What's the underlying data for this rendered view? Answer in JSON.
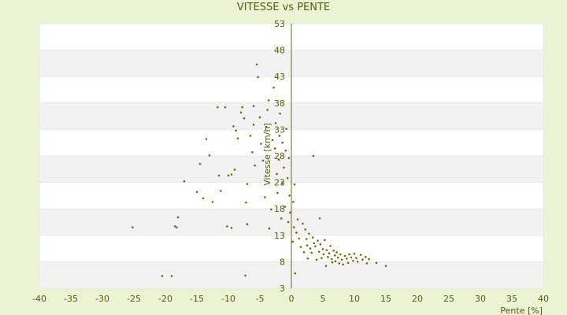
{
  "chart_data": {
    "type": "scatter",
    "title": "VITESSE vs PENTE",
    "xlabel": "Pente [%]",
    "ylabel": "Vitesse [km/h]",
    "xlim": [
      -40,
      40
    ],
    "ylim": [
      3,
      53
    ],
    "x_ticks": [
      -40,
      -35,
      -30,
      -25,
      -20,
      -15,
      -10,
      -5,
      0,
      5,
      10,
      15,
      20,
      25,
      30,
      35,
      40
    ],
    "y_ticks": [
      3,
      8,
      13,
      18,
      23,
      28,
      33,
      38,
      43,
      48,
      53
    ],
    "grid": "horizontal alternating bands",
    "point_color": "#6b6b10",
    "band_color": "#f2f2f2",
    "points": [
      [
        -25.2,
        14.5
      ],
      [
        -20.5,
        5.3
      ],
      [
        -19,
        5.3
      ],
      [
        -18.5,
        14.7
      ],
      [
        -18,
        16.4
      ],
      [
        -18.2,
        14.5
      ],
      [
        -17,
        23.2
      ],
      [
        -15,
        21.2
      ],
      [
        -14.5,
        26.5
      ],
      [
        -14,
        20
      ],
      [
        -13.5,
        31.2
      ],
      [
        -13,
        28.1
      ],
      [
        -12.5,
        19.3
      ],
      [
        -11.5,
        24.3
      ],
      [
        -11.7,
        37.2
      ],
      [
        -11.2,
        21.4
      ],
      [
        -10.5,
        37.2
      ],
      [
        -10,
        24.3
      ],
      [
        -10.2,
        14.7
      ],
      [
        -9.5,
        14.4
      ],
      [
        -9,
        25.4
      ],
      [
        -9.5,
        24.5
      ],
      [
        -9.2,
        33.6
      ],
      [
        -8.8,
        32.8
      ],
      [
        -8.5,
        31.3
      ],
      [
        -8,
        36.2
      ],
      [
        -7.5,
        35.1
      ],
      [
        -7.8,
        37.2
      ],
      [
        -7.2,
        19.2
      ],
      [
        -7,
        15.1
      ],
      [
        -7.3,
        5.4
      ],
      [
        -7,
        22.7
      ],
      [
        -6.5,
        31.8
      ],
      [
        -6.2,
        28.7
      ],
      [
        -6,
        33.9
      ],
      [
        -6,
        37.4
      ],
      [
        -5.8,
        26.2
      ],
      [
        -5.5,
        45.3
      ],
      [
        -5.3,
        42.9
      ],
      [
        -5,
        35.3
      ],
      [
        -4.8,
        30.3
      ],
      [
        -4.5,
        27.1
      ],
      [
        -4.2,
        20.2
      ],
      [
        -4,
        33.5
      ],
      [
        -3.8,
        36.7
      ],
      [
        -3.6,
        38.5
      ],
      [
        -3.5,
        14.3
      ],
      [
        -3.2,
        17.9
      ],
      [
        -3,
        31
      ],
      [
        -2.8,
        40.9
      ],
      [
        -2.6,
        29.4
      ],
      [
        -2.5,
        34.2
      ],
      [
        -2.3,
        24.6
      ],
      [
        -2.2,
        21
      ],
      [
        -2,
        27.3
      ],
      [
        -1.9,
        31.8
      ],
      [
        -1.8,
        36
      ],
      [
        -1.6,
        16.2
      ],
      [
        -1.5,
        22.8
      ],
      [
        -1.4,
        30.5
      ],
      [
        -1.2,
        25.8
      ],
      [
        -1,
        18.4
      ],
      [
        -0.9,
        29
      ],
      [
        -0.8,
        33.1
      ],
      [
        -0.6,
        23.8
      ],
      [
        -0.5,
        15.5
      ],
      [
        -0.4,
        27.6
      ],
      [
        -0.3,
        20.5
      ],
      [
        -0.2,
        17.3
      ],
      [
        0.2,
        11.8
      ],
      [
        0.3,
        19.3
      ],
      [
        0.4,
        14.5
      ],
      [
        0.5,
        22.6
      ],
      [
        0.6,
        5.8
      ],
      [
        0.8,
        13.5
      ],
      [
        1,
        16
      ],
      [
        1.2,
        12.4
      ],
      [
        1.5,
        10.8
      ],
      [
        1.8,
        15.2
      ],
      [
        2,
        9.8
      ],
      [
        2.2,
        14.1
      ],
      [
        2.4,
        12.3
      ],
      [
        2.5,
        11.1
      ],
      [
        2.6,
        8.6
      ],
      [
        2.8,
        13.3
      ],
      [
        3,
        10.5
      ],
      [
        3.2,
        9.7
      ],
      [
        3.4,
        12.6
      ],
      [
        3.5,
        28
      ],
      [
        3.6,
        11.5
      ],
      [
        3.8,
        10.9
      ],
      [
        4,
        8.4
      ],
      [
        4.2,
        12
      ],
      [
        4.4,
        9.9
      ],
      [
        4.5,
        16.2
      ],
      [
        4.6,
        11.3
      ],
      [
        4.8,
        8.7
      ],
      [
        5,
        10.4
      ],
      [
        5.1,
        9.4
      ],
      [
        5.3,
        12.1
      ],
      [
        5.5,
        7.2
      ],
      [
        5.6,
        10.2
      ],
      [
        5.8,
        8.9
      ],
      [
        6,
        9.6
      ],
      [
        6.2,
        11
      ],
      [
        6.4,
        8.5
      ],
      [
        6.5,
        7.9
      ],
      [
        6.7,
        10.1
      ],
      [
        6.9,
        9.2
      ],
      [
        7,
        8.1
      ],
      [
        7.2,
        9.8
      ],
      [
        7.4,
        8.8
      ],
      [
        7.6,
        7.7
      ],
      [
        7.8,
        9.4
      ],
      [
        8,
        8.4
      ],
      [
        8.2,
        7.5
      ],
      [
        8.5,
        9.1
      ],
      [
        8.8,
        8.6
      ],
      [
        9,
        7.8
      ],
      [
        9.2,
        9.4
      ],
      [
        9.5,
        8.8
      ],
      [
        9.8,
        8.2
      ],
      [
        10,
        9.5
      ],
      [
        10.3,
        8.7
      ],
      [
        10.5,
        8
      ],
      [
        11,
        9.3
      ],
      [
        11.3,
        8.4
      ],
      [
        11.8,
        8.9
      ],
      [
        12,
        7.7
      ],
      [
        12.3,
        8.5
      ],
      [
        13.5,
        7.8
      ],
      [
        15,
        7.2
      ]
    ]
  }
}
